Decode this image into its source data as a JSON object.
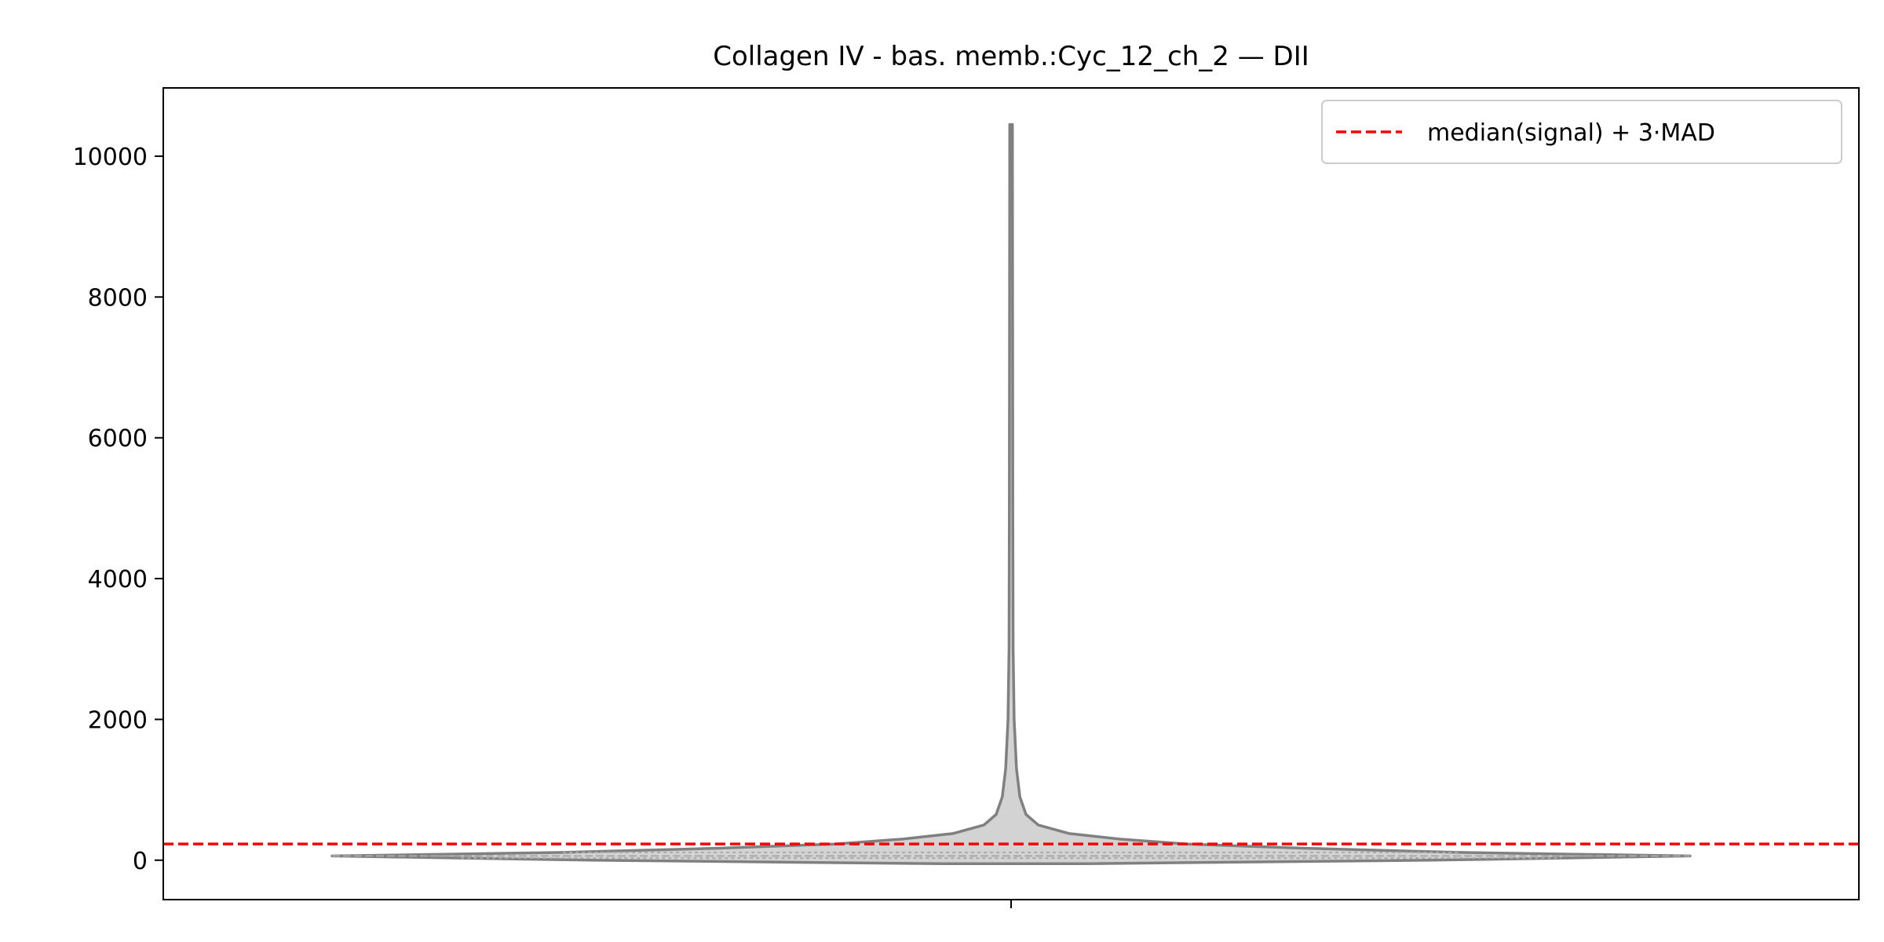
{
  "chart_data": {
    "type": "violin",
    "title": "Collagen IV - bas. memb.:Cyc_12_ch_2 — DII",
    "xlabel": "",
    "ylabel": "",
    "ylim": [
      -560,
      10970
    ],
    "yticks": [
      0,
      2000,
      4000,
      6000,
      8000,
      10000
    ],
    "ytick_labels": [
      "0",
      "2000",
      "4000",
      "6000",
      "8000",
      "10000"
    ],
    "grid": false,
    "legend": {
      "placement": "top-right",
      "entries": [
        {
          "label": "median(signal) + 3·MAD",
          "style": "dashed",
          "color": "#ff0000"
        }
      ]
    },
    "threshold": {
      "value": 230,
      "color": "#ff0000",
      "style": "dashed"
    },
    "violin": {
      "fill": "#d3d3d3",
      "edge": "#808080",
      "min": -50,
      "max": 10450,
      "inner": "quartile-dashes",
      "quartiles": [
        30,
        60,
        110
      ],
      "profile": [
        {
          "y": -50,
          "w": 0.1
        },
        {
          "y": 0,
          "w": 0.62
        },
        {
          "y": 60,
          "w": 1.0
        },
        {
          "y": 110,
          "w": 0.66
        },
        {
          "y": 170,
          "w": 0.43
        },
        {
          "y": 230,
          "w": 0.26
        },
        {
          "y": 300,
          "w": 0.16
        },
        {
          "y": 380,
          "w": 0.085
        },
        {
          "y": 500,
          "w": 0.04
        },
        {
          "y": 650,
          "w": 0.022
        },
        {
          "y": 900,
          "w": 0.013
        },
        {
          "y": 1300,
          "w": 0.008
        },
        {
          "y": 2000,
          "w": 0.0045
        },
        {
          "y": 3000,
          "w": 0.003
        },
        {
          "y": 5000,
          "w": 0.0025
        },
        {
          "y": 8000,
          "w": 0.0022
        },
        {
          "y": 10450,
          "w": 0.002
        }
      ]
    }
  }
}
